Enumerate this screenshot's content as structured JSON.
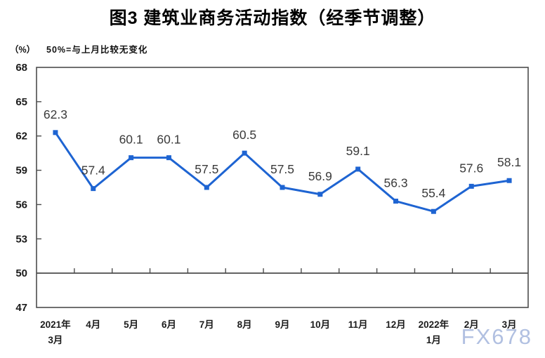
{
  "chart_data": {
    "type": "line",
    "title": "图3 建筑业商务活动指数（经季节调整）",
    "unit_label": "（%）",
    "annotation": "50%=与上月比较无变化",
    "categories": [
      "2021年\n3月",
      "4月",
      "5月",
      "6月",
      "7月",
      "8月",
      "9月",
      "10月",
      "11月",
      "12月",
      "2022年\n1月",
      "2月",
      "3月"
    ],
    "values": [
      62.3,
      57.4,
      60.1,
      60.1,
      57.5,
      60.5,
      57.5,
      56.9,
      59.1,
      56.3,
      55.4,
      57.6,
      58.1
    ],
    "ylim": [
      47,
      68
    ],
    "yticks": [
      47,
      50,
      53,
      56,
      59,
      62,
      65,
      68
    ],
    "reference_value": 50,
    "grid": false,
    "legend_position": "none",
    "marker": "square",
    "colors": {
      "line": "#1e64d2",
      "data_label": "#3a3a3a",
      "axis": "#4d4d4d",
      "tick_label": "#1b1b1b",
      "watermark": "#a9bade"
    }
  },
  "watermark": {
    "text": "FX678"
  }
}
